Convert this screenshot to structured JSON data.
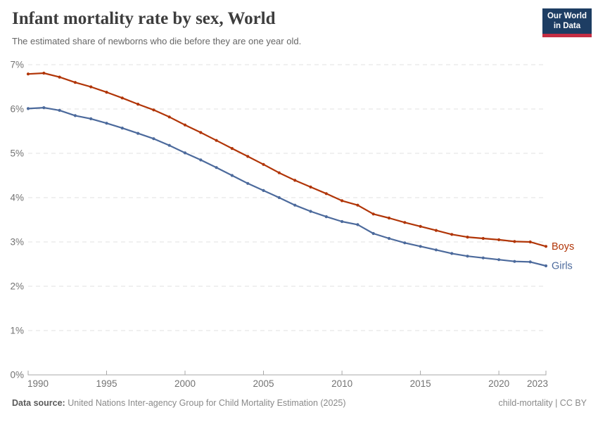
{
  "header": {
    "title": "Infant mortality rate by sex, World",
    "subtitle": "The estimated share of newborns who die before they are one year old."
  },
  "logo": {
    "line1": "Our World",
    "line2": "in Data",
    "bg_color": "#1d3d63",
    "bar_color": "#c52e43"
  },
  "chart_data": {
    "type": "line",
    "title": "Infant mortality rate by sex, World",
    "subtitle": "The estimated share of newborns who die before they are one year old.",
    "x": [
      1990,
      1991,
      1992,
      1993,
      1994,
      1995,
      1996,
      1997,
      1998,
      1999,
      2000,
      2001,
      2002,
      2003,
      2004,
      2005,
      2006,
      2007,
      2008,
      2009,
      2010,
      2011,
      2012,
      2013,
      2014,
      2015,
      2016,
      2017,
      2018,
      2019,
      2020,
      2021,
      2022,
      2023
    ],
    "series": [
      {
        "name": "Boys",
        "color": "#B13507",
        "values": [
          6.79,
          6.81,
          6.72,
          6.6,
          6.5,
          6.38,
          6.25,
          6.11,
          5.98,
          5.82,
          5.64,
          5.47,
          5.29,
          5.11,
          4.93,
          4.75,
          4.56,
          4.39,
          4.24,
          4.09,
          3.93,
          3.83,
          3.63,
          3.54,
          3.44,
          3.35,
          3.26,
          3.17,
          3.11,
          3.08,
          3.05,
          3.01,
          3.0,
          2.9
        ]
      },
      {
        "name": "Girls",
        "color": "#4C6A9C",
        "values": [
          6.01,
          6.03,
          5.97,
          5.85,
          5.78,
          5.68,
          5.57,
          5.45,
          5.33,
          5.18,
          5.01,
          4.85,
          4.68,
          4.5,
          4.32,
          4.16,
          4.0,
          3.83,
          3.69,
          3.57,
          3.46,
          3.39,
          3.19,
          3.08,
          2.98,
          2.9,
          2.82,
          2.74,
          2.68,
          2.64,
          2.6,
          2.56,
          2.55,
          2.46
        ]
      }
    ],
    "xlabel": "",
    "ylabel": "",
    "ylim": [
      0,
      7
    ],
    "yticks": [
      0,
      1,
      2,
      3,
      4,
      5,
      6,
      7
    ],
    "ytick_suffix": "%",
    "xticks": [
      1990,
      1995,
      2000,
      2005,
      2010,
      2015,
      2020,
      2023
    ],
    "grid": "horizontal-dashed",
    "legend_position": "end-of-line-labels"
  },
  "footer": {
    "source_label": "Data source:",
    "source_text": "United Nations Inter-agency Group for Child Mortality Estimation (2025)",
    "slug": "child-mortality",
    "separator": " | ",
    "license": "CC BY"
  }
}
